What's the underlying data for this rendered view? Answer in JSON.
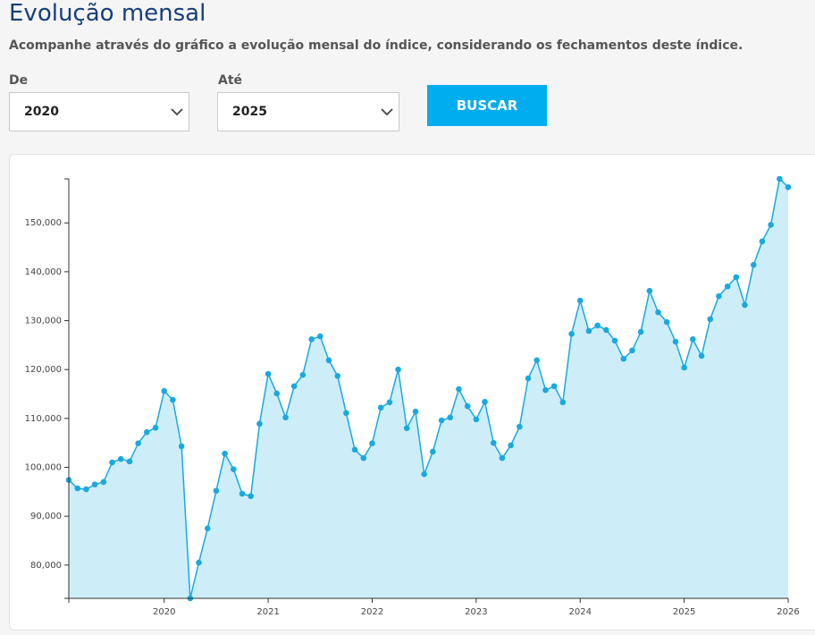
{
  "header": {
    "title": "Evolução mensal",
    "subtitle": "Acompanhe através do gráfico a evolução mensal do índice, considerando os fechamentos deste índice."
  },
  "form": {
    "from_label": "De",
    "from_value": "2020",
    "to_label": "Até",
    "to_value": "2025",
    "button": "BUSCAR"
  },
  "chart_data": {
    "type": "area",
    "color": "#1aa9de",
    "fill": "#cdeef9",
    "x": [
      2019.083,
      2019.167,
      2019.25,
      2019.333,
      2019.417,
      2019.5,
      2019.583,
      2019.667,
      2019.75,
      2019.833,
      2019.917,
      2020,
      2020.083,
      2020.167,
      2020.25,
      2020.333,
      2020.417,
      2020.5,
      2020.583,
      2020.667,
      2020.75,
      2020.833,
      2020.917,
      2021,
      2021.083,
      2021.167,
      2021.25,
      2021.333,
      2021.417,
      2021.5,
      2021.583,
      2021.667,
      2021.75,
      2021.833,
      2021.917,
      2022,
      2022.083,
      2022.167,
      2022.25,
      2022.333,
      2022.417,
      2022.5,
      2022.583,
      2022.667,
      2022.75,
      2022.833,
      2022.917,
      2023,
      2023.083,
      2023.167,
      2023.25,
      2023.333,
      2023.417,
      2023.5,
      2023.583,
      2023.667,
      2023.75,
      2023.833,
      2023.917,
      2024,
      2024.083,
      2024.167,
      2024.25,
      2024.333,
      2024.417,
      2024.5,
      2024.583,
      2024.667,
      2024.75,
      2024.833,
      2024.917,
      2025,
      2025.083,
      2025.167,
      2025.25,
      2025.333,
      2025.417,
      2025.5,
      2025.583,
      2025.667,
      2025.75,
      2025.833,
      2025.917,
      2026
    ],
    "values": [
      97400,
      95700,
      95500,
      96500,
      97000,
      101000,
      101700,
      101200,
      104900,
      107200,
      108100,
      115600,
      113800,
      104300,
      73200,
      80500,
      87500,
      95200,
      102800,
      99600,
      94600,
      94100,
      108900,
      119100,
      115100,
      110200,
      116600,
      118900,
      126200,
      126800,
      121900,
      118700,
      111100,
      103600,
      101900,
      104900,
      112200,
      113300,
      120000,
      108000,
      111400,
      98600,
      103200,
      109600,
      110200,
      116000,
      112500,
      109800,
      113400,
      105000,
      101900,
      104500,
      108300,
      118200,
      121900,
      115800,
      116600,
      113300,
      127300,
      134100,
      127900,
      129000,
      128100,
      125900,
      122200,
      123900,
      127700,
      136100,
      131700,
      129700,
      125700,
      120400,
      126200,
      122800,
      130300,
      135000,
      137000,
      138900,
      133200,
      141400,
      146200,
      149600,
      159000,
      157300
    ],
    "xlim": [
      2019.083,
      2026
    ],
    "xticks": [
      2020,
      2021,
      2022,
      2023,
      2024,
      2025,
      2026
    ],
    "ylim": [
      73200,
      159000
    ],
    "yticks": [
      {
        "value": 80000,
        "label": "80,000"
      },
      {
        "value": 90000,
        "label": "90,000"
      },
      {
        "value": 100000,
        "label": "100,000"
      },
      {
        "value": 110000,
        "label": "110,000"
      },
      {
        "value": 120000,
        "label": "120,000"
      },
      {
        "value": 130000,
        "label": "130,000"
      },
      {
        "value": 140000,
        "label": "140,000"
      },
      {
        "value": 150000,
        "label": "150,000"
      }
    ],
    "grid": false
  }
}
